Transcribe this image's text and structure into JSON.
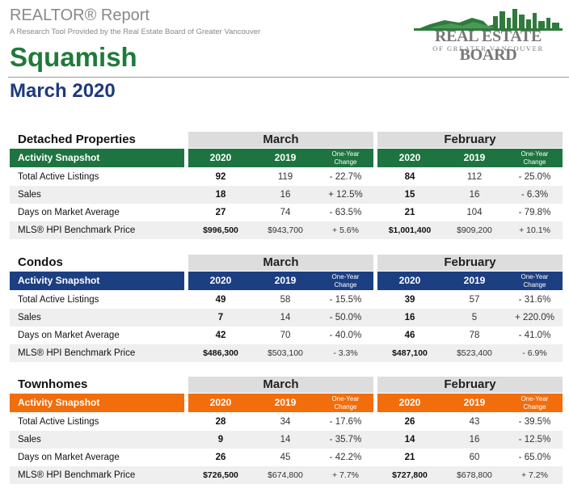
{
  "header": {
    "title": "REALTOR® Report",
    "subtitle": "A Research Tool Provided by the Real Estate Board of Greater Vancouver",
    "city": "Squamish",
    "period": "March 2020"
  },
  "logo": {
    "name": "REAL ESTATE BOARD",
    "sub": "OF GREATER VANCOUVER"
  },
  "columns": {
    "march": "March",
    "february": "February",
    "y2020": "2020",
    "y2019": "2019",
    "change_l1": "One-Year",
    "change_l2": "Change",
    "snapshot": "Activity Snapshot"
  },
  "sections": [
    {
      "title": "Detached Properties",
      "color": "#1e7440",
      "rows": [
        {
          "label": "Total Active Listings",
          "m20": "92",
          "m19": "119",
          "mch": "- 22.7%",
          "f20": "84",
          "f19": "112",
          "fch": "- 25.0%"
        },
        {
          "label": "Sales",
          "m20": "18",
          "m19": "16",
          "mch": "+ 12.5%",
          "f20": "15",
          "f19": "16",
          "fch": "- 6.3%"
        },
        {
          "label": "Days on Market Average",
          "m20": "27",
          "m19": "74",
          "mch": "- 63.5%",
          "f20": "21",
          "f19": "104",
          "fch": "- 79.8%"
        },
        {
          "label": "MLS® HPI Benchmark Price",
          "m20": "$996,500",
          "m19": "$943,700",
          "mch": "+ 5.6%",
          "f20": "$1,001,400",
          "f19": "$909,200",
          "fch": "+ 10.1%"
        }
      ]
    },
    {
      "title": "Condos",
      "color": "#1c3f82",
      "rows": [
        {
          "label": "Total Active Listings",
          "m20": "49",
          "m19": "58",
          "mch": "- 15.5%",
          "f20": "39",
          "f19": "57",
          "fch": "- 31.6%"
        },
        {
          "label": "Sales",
          "m20": "7",
          "m19": "14",
          "mch": "- 50.0%",
          "f20": "16",
          "f19": "5",
          "fch": "+ 220.0%"
        },
        {
          "label": "Days on Market Average",
          "m20": "42",
          "m19": "70",
          "mch": "- 40.0%",
          "f20": "46",
          "f19": "78",
          "fch": "- 41.0%"
        },
        {
          "label": "MLS® HPI Benchmark Price",
          "m20": "$486,300",
          "m19": "$503,100",
          "mch": "- 3.3%",
          "f20": "$487,100",
          "f19": "$523,400",
          "fch": "- 6.9%"
        }
      ]
    },
    {
      "title": "Townhomes",
      "color": "#f26d0c",
      "rows": [
        {
          "label": "Total Active Listings",
          "m20": "28",
          "m19": "34",
          "mch": "- 17.6%",
          "f20": "26",
          "f19": "43",
          "fch": "- 39.5%"
        },
        {
          "label": "Sales",
          "m20": "9",
          "m19": "14",
          "mch": "- 35.7%",
          "f20": "14",
          "f19": "16",
          "fch": "- 12.5%"
        },
        {
          "label": "Days on Market Average",
          "m20": "26",
          "m19": "45",
          "mch": "- 42.2%",
          "f20": "21",
          "f19": "60",
          "fch": "- 65.0%"
        },
        {
          "label": "MLS® HPI Benchmark Price",
          "m20": "$726,500",
          "m19": "$674,800",
          "mch": "+ 7.7%",
          "f20": "$727,800",
          "f19": "$678,800",
          "fch": "+ 7.2%"
        }
      ]
    }
  ]
}
